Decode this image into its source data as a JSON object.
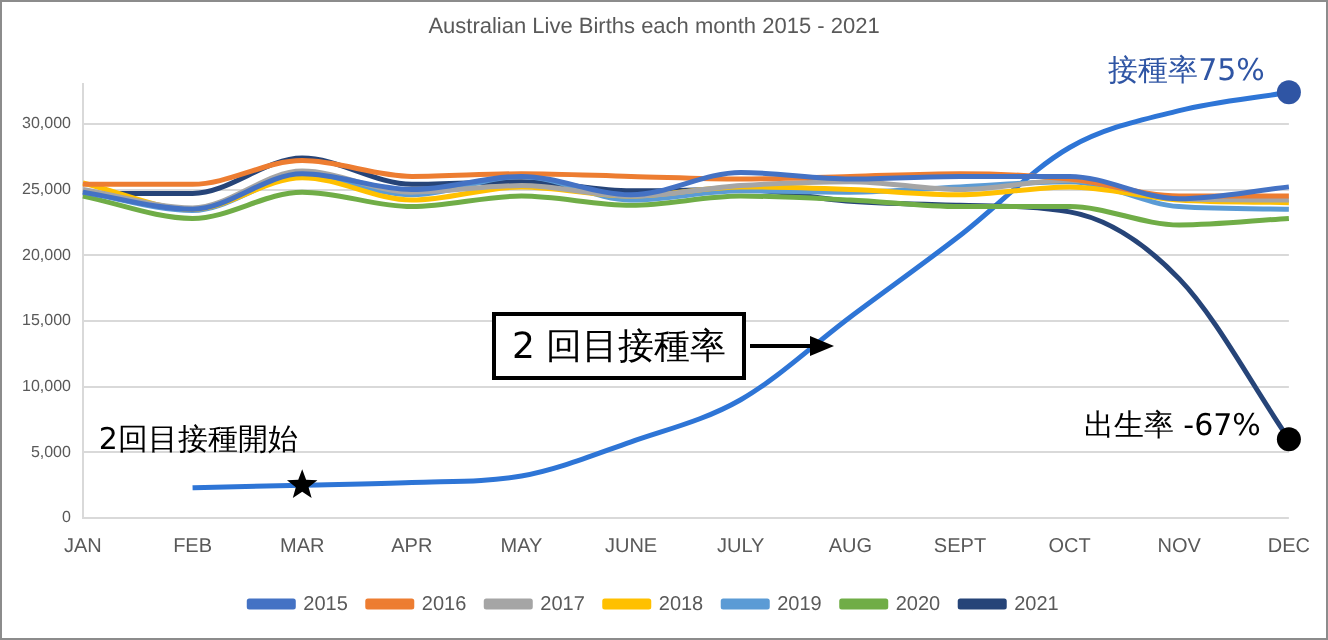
{
  "chart_data": {
    "type": "line",
    "title": "Australian Live Births each month 2015 - 2021",
    "categories": [
      "JAN",
      "FEB",
      "MAR",
      "APR",
      "MAY",
      "JUNE",
      "JULY",
      "AUG",
      "SEPT",
      "OCT",
      "NOV",
      "DEC"
    ],
    "series": [
      {
        "name": "2015",
        "color": "#4472c4",
        "values": [
          24800,
          23500,
          26200,
          25000,
          26000,
          24600,
          26300,
          25800,
          26000,
          26000,
          24300,
          25200
        ]
      },
      {
        "name": "2016",
        "color": "#ed7d31",
        "values": [
          25400,
          25400,
          27200,
          26000,
          26200,
          26000,
          25800,
          26000,
          26200,
          25800,
          24500,
          24500
        ]
      },
      {
        "name": "2017",
        "color": "#a5a5a5",
        "values": [
          25000,
          23600,
          26400,
          24800,
          25300,
          24500,
          25300,
          25600,
          25000,
          25700,
          24300,
          24200
        ]
      },
      {
        "name": "2018",
        "color": "#ffc000",
        "values": [
          25500,
          23500,
          25900,
          24200,
          25200,
          24500,
          25200,
          25000,
          24600,
          25200,
          24200,
          24000
        ]
      },
      {
        "name": "2019",
        "color": "#5b9bd5",
        "values": [
          24800,
          23400,
          26000,
          24600,
          26000,
          24200,
          24900,
          24800,
          25200,
          25600,
          23700,
          23500
        ]
      },
      {
        "name": "2020",
        "color": "#70ad47",
        "values": [
          24500,
          22800,
          24800,
          23700,
          24500,
          23800,
          24500,
          24200,
          23700,
          23700,
          22300,
          22800
        ]
      },
      {
        "name": "2021",
        "color": "#264478",
        "values": [
          24700,
          24700,
          27400,
          25400,
          25600,
          24900,
          25000,
          24100,
          23800,
          23300,
          18200,
          6000
        ]
      },
      {
        "color": "#2e75d6",
        "values": [
          null,
          2300,
          2500,
          2700,
          3200,
          5800,
          9000,
          15300,
          21500,
          28200,
          31000,
          32400
        ]
      },
      {
        "type": "scatter",
        "color": "#000000",
        "marker": "star",
        "values": [
          null,
          null,
          2500,
          null,
          null,
          null,
          null,
          null,
          null,
          null,
          null,
          null
        ]
      }
    ],
    "ylim": [
      0,
      33000
    ],
    "yticks": [
      0,
      {
        "value": 5000,
        "label": "5,000"
      },
      {
        "value": 10000,
        "label": "10,000"
      },
      {
        "value": 15000,
        "label": "15,000"
      },
      {
        "value": 20000,
        "label": "20,000"
      },
      {
        "value": 25000,
        "label": "25,000"
      },
      {
        "value": 30000,
        "label": "30,000"
      }
    ],
    "grid": "y",
    "legend": "bottom",
    "marker": "none",
    "line_style": "solid",
    "annotations": [
      {
        "text": "2回目接種開始",
        "x": "MAR",
        "y": 2500
      },
      {
        "text": "接種率75%",
        "x": "DEC",
        "y": 32400
      },
      {
        "text": "出生率 -67%",
        "x": "DEC",
        "y": 6000
      },
      "2 回目接種率"
    ]
  }
}
